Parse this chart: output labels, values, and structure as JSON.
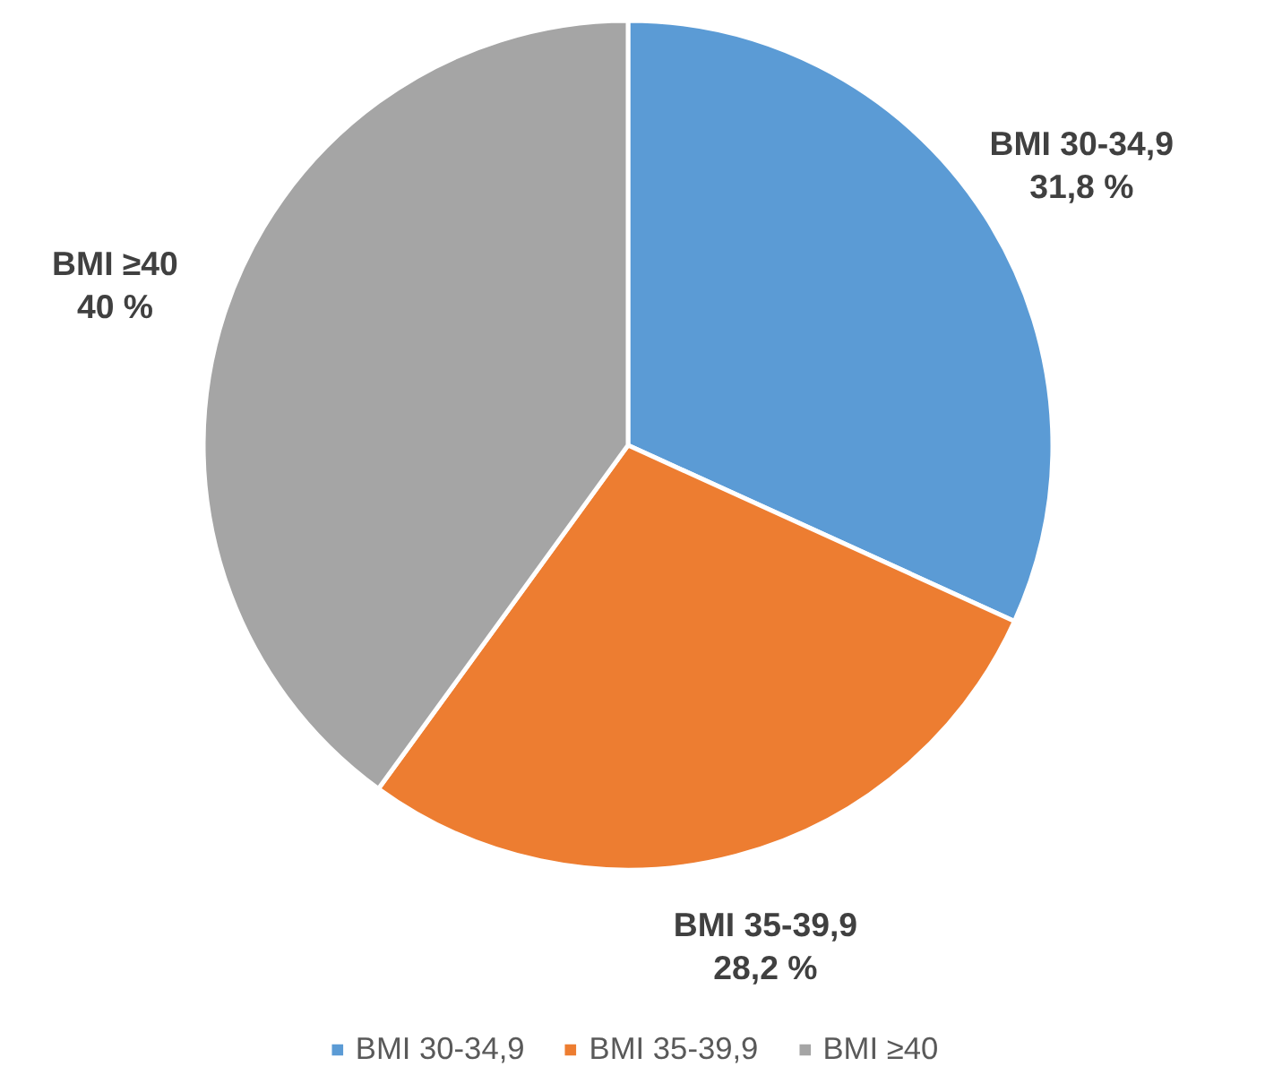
{
  "chart_data": {
    "type": "pie",
    "categories": [
      "BMI 30-34,9",
      "BMI 35-39,9",
      "BMI ≥40"
    ],
    "values": [
      31.8,
      28.2,
      40
    ],
    "colors": [
      "#5b9bd5",
      "#ed7d31",
      "#a5a5a5"
    ],
    "value_labels": [
      "31,8 %",
      "28,2 %",
      "40 %"
    ],
    "legend": "bottom"
  }
}
